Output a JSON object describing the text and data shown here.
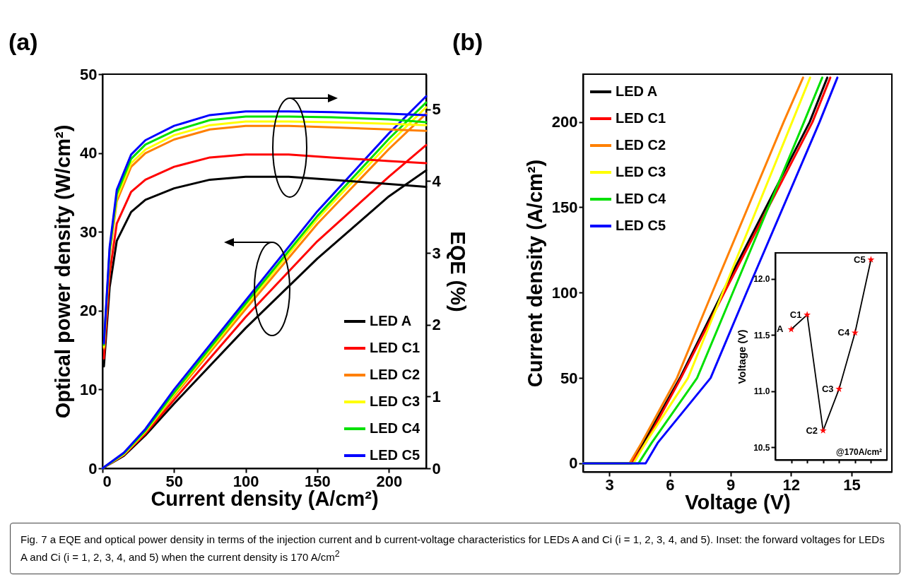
{
  "chart_data": [
    {
      "type": "line",
      "title": "(a)",
      "xlabel": "Current density (A/cm²)",
      "ylabel": "Optical power density (W/cm²)",
      "y2label": "EQE (%)",
      "xlim": [
        0,
        226
      ],
      "xticks": [
        0,
        50,
        100,
        150,
        200
      ],
      "ylim": [
        0,
        50
      ],
      "yticks": [
        0,
        10,
        20,
        30,
        40,
        50
      ],
      "y2lim": [
        0,
        5.49
      ],
      "y2ticks": [
        0,
        1,
        2,
        3,
        4,
        5
      ],
      "legend": "bottom right",
      "series": [
        {
          "color": "#000000",
          "x": [
            0,
            15,
            30,
            50,
            100,
            150,
            200,
            226
          ],
          "values": [
            0,
            1.6,
            4.2,
            8.2,
            17.8,
            26.6,
            34.5,
            37.8
          ]
        },
        {
          "color": "#ff0000",
          "x": [
            0,
            15,
            30,
            50,
            100,
            150,
            200,
            226
          ],
          "values": [
            0,
            1.7,
            4.4,
            8.7,
            19.2,
            28.8,
            37.0,
            41.0
          ]
        },
        {
          "color": "#ff8000",
          "x": [
            0,
            15,
            30,
            50,
            100,
            150,
            200,
            226
          ],
          "values": [
            0,
            1.8,
            4.6,
            9.2,
            20.2,
            31.0,
            40.5,
            45.0
          ]
        },
        {
          "color": "#ffff00",
          "x": [
            0,
            15,
            30,
            50,
            100,
            150,
            200,
            226
          ],
          "values": [
            0,
            1.8,
            4.7,
            9.4,
            20.6,
            31.6,
            41.2,
            45.8
          ]
        },
        {
          "color": "#00e000",
          "x": [
            0,
            15,
            30,
            50,
            100,
            150,
            200,
            226
          ],
          "values": [
            0,
            1.9,
            4.8,
            9.6,
            20.9,
            32.0,
            41.8,
            46.4
          ]
        },
        {
          "color": "#0000ff",
          "x": [
            0,
            15,
            30,
            50,
            100,
            150,
            200,
            226
          ],
          "values": [
            0,
            2.0,
            5.0,
            10.0,
            21.3,
            32.6,
            42.5,
            47.2
          ]
        },
        {
          "name": "LED A",
          "color": "#000000",
          "axis": "y2",
          "x": [
            1,
            5,
            10,
            20,
            30,
            50,
            75,
            100,
            130,
            160,
            200,
            226
          ],
          "values": [
            1.42,
            2.52,
            3.17,
            3.57,
            3.74,
            3.9,
            4.02,
            4.06,
            4.06,
            4.02,
            3.96,
            3.92
          ]
        },
        {
          "name": "LED C1",
          "color": "#ff0000",
          "axis": "y2",
          "x": [
            1,
            5,
            10,
            20,
            30,
            50,
            75,
            100,
            130,
            160,
            200,
            226
          ],
          "values": [
            1.53,
            2.71,
            3.41,
            3.85,
            4.02,
            4.2,
            4.33,
            4.37,
            4.37,
            4.33,
            4.28,
            4.25
          ]
        },
        {
          "name": "LED C2",
          "color": "#ff8000",
          "axis": "y2",
          "x": [
            1,
            5,
            10,
            20,
            30,
            50,
            75,
            100,
            130,
            160,
            200,
            226
          ],
          "values": [
            1.67,
            2.96,
            3.72,
            4.2,
            4.39,
            4.58,
            4.72,
            4.77,
            4.77,
            4.75,
            4.72,
            4.7
          ]
        },
        {
          "name": "LED C3",
          "color": "#ffff00",
          "axis": "y2",
          "x": [
            1,
            5,
            10,
            20,
            30,
            50,
            75,
            100,
            130,
            160,
            200,
            226
          ],
          "values": [
            1.69,
            2.99,
            3.77,
            4.25,
            4.44,
            4.64,
            4.78,
            4.83,
            4.83,
            4.82,
            4.8,
            4.78
          ]
        },
        {
          "name": "LED C4",
          "color": "#00e000",
          "axis": "y2",
          "x": [
            1,
            5,
            10,
            20,
            30,
            50,
            75,
            100,
            130,
            160,
            200,
            226
          ],
          "values": [
            1.72,
            3.04,
            3.82,
            4.31,
            4.51,
            4.7,
            4.85,
            4.9,
            4.9,
            4.89,
            4.86,
            4.82
          ]
        },
        {
          "name": "LED C5",
          "color": "#0000ff",
          "axis": "y2",
          "x": [
            1,
            5,
            10,
            20,
            30,
            50,
            75,
            100,
            130,
            160,
            200,
            226
          ],
          "values": [
            1.74,
            3.08,
            3.88,
            4.37,
            4.57,
            4.77,
            4.92,
            4.97,
            4.97,
            4.96,
            4.94,
            4.92
          ]
        }
      ],
      "annotations": [
        "Fig. 7 a EQE and optical power density in terms of the injection current and b current-voltage characteristics for LEDs A and Ci (i = 1, 2, 3, 4, and 5). Inset: the forward voltages for LEDs A and Ci (i = 1, 2, 3, 4, and 5) when the current density is 170 A/cm$^{2}$"
      ]
    },
    {
      "type": "line",
      "title": "(b)",
      "xlabel": "Voltage (V)",
      "ylabel": "Current density (A/cm²)",
      "xlim": [
        1.7,
        17
      ],
      "xticks": [
        3,
        6,
        9,
        12,
        15
      ],
      "ylim": [
        -5,
        228
      ],
      "yticks": [
        0,
        50,
        100,
        150,
        200
      ],
      "legend": "top left",
      "series": [
        {
          "name": "LED A",
          "color": "#000000",
          "x": [
            1.7,
            4.1,
            4.7,
            6.5,
            8.6,
            12.93,
            13.8
          ],
          "values": [
            0,
            0,
            12,
            50,
            100,
            200,
            226
          ]
        },
        {
          "name": "LED C1",
          "color": "#ff0000",
          "x": [
            1.7,
            4.1,
            4.8,
            6.55,
            8.7,
            13.07,
            13.95
          ],
          "values": [
            0,
            0,
            12,
            50,
            100,
            200,
            226
          ]
        },
        {
          "name": "LED C2",
          "color": "#ff8000",
          "x": [
            1.7,
            4.0,
            4.6,
            6.35,
            8.1,
            11.64,
            12.6
          ],
          "values": [
            0,
            0,
            12,
            50,
            100,
            200,
            226
          ]
        },
        {
          "name": "LED C3",
          "color": "#ffff00",
          "x": [
            1.7,
            4.2,
            4.8,
            6.9,
            8.62,
            12.06,
            12.95
          ],
          "values": [
            0,
            0,
            12,
            50,
            100,
            200,
            226
          ]
        },
        {
          "name": "LED C4",
          "color": "#00e000",
          "x": [
            1.7,
            4.45,
            5.1,
            7.35,
            9.12,
            12.65,
            13.55
          ],
          "values": [
            0,
            0,
            12,
            50,
            100,
            200,
            226
          ]
        },
        {
          "name": "LED C5",
          "color": "#0000ff",
          "x": [
            1.7,
            4.8,
            5.4,
            8.02,
            9.8,
            13.42,
            14.3
          ],
          "values": [
            0,
            0,
            12,
            50,
            100,
            200,
            226
          ]
        }
      ]
    },
    {
      "type": "line",
      "ylabel": "Voltage (V)",
      "categories": [
        null,
        null,
        null,
        null,
        null,
        null
      ],
      "ylim": [
        10.39,
        12.23
      ],
      "yticks": [
        10.5,
        {
          "value": 11,
          "label": "11.0"
        },
        11.5,
        {
          "value": 12,
          "label": "12.0"
        }
      ],
      "tick_labels": "y",
      "series": [
        {
          "color": "#000000",
          "marker": "none",
          "values": [
            11.55,
            11.68,
            10.65,
            11.02,
            11.52,
            12.17
          ]
        },
        {
          "type": "scatter",
          "color": "#ff0000",
          "marker": "star",
          "values": [
            11.55,
            11.68,
            10.65,
            11.02,
            11.52,
            12.17
          ]
        }
      ],
      "annotations": [
        "A",
        "C1",
        "C2",
        "C3",
        "C4",
        "C5",
        "@170A/cm²"
      ]
    }
  ]
}
